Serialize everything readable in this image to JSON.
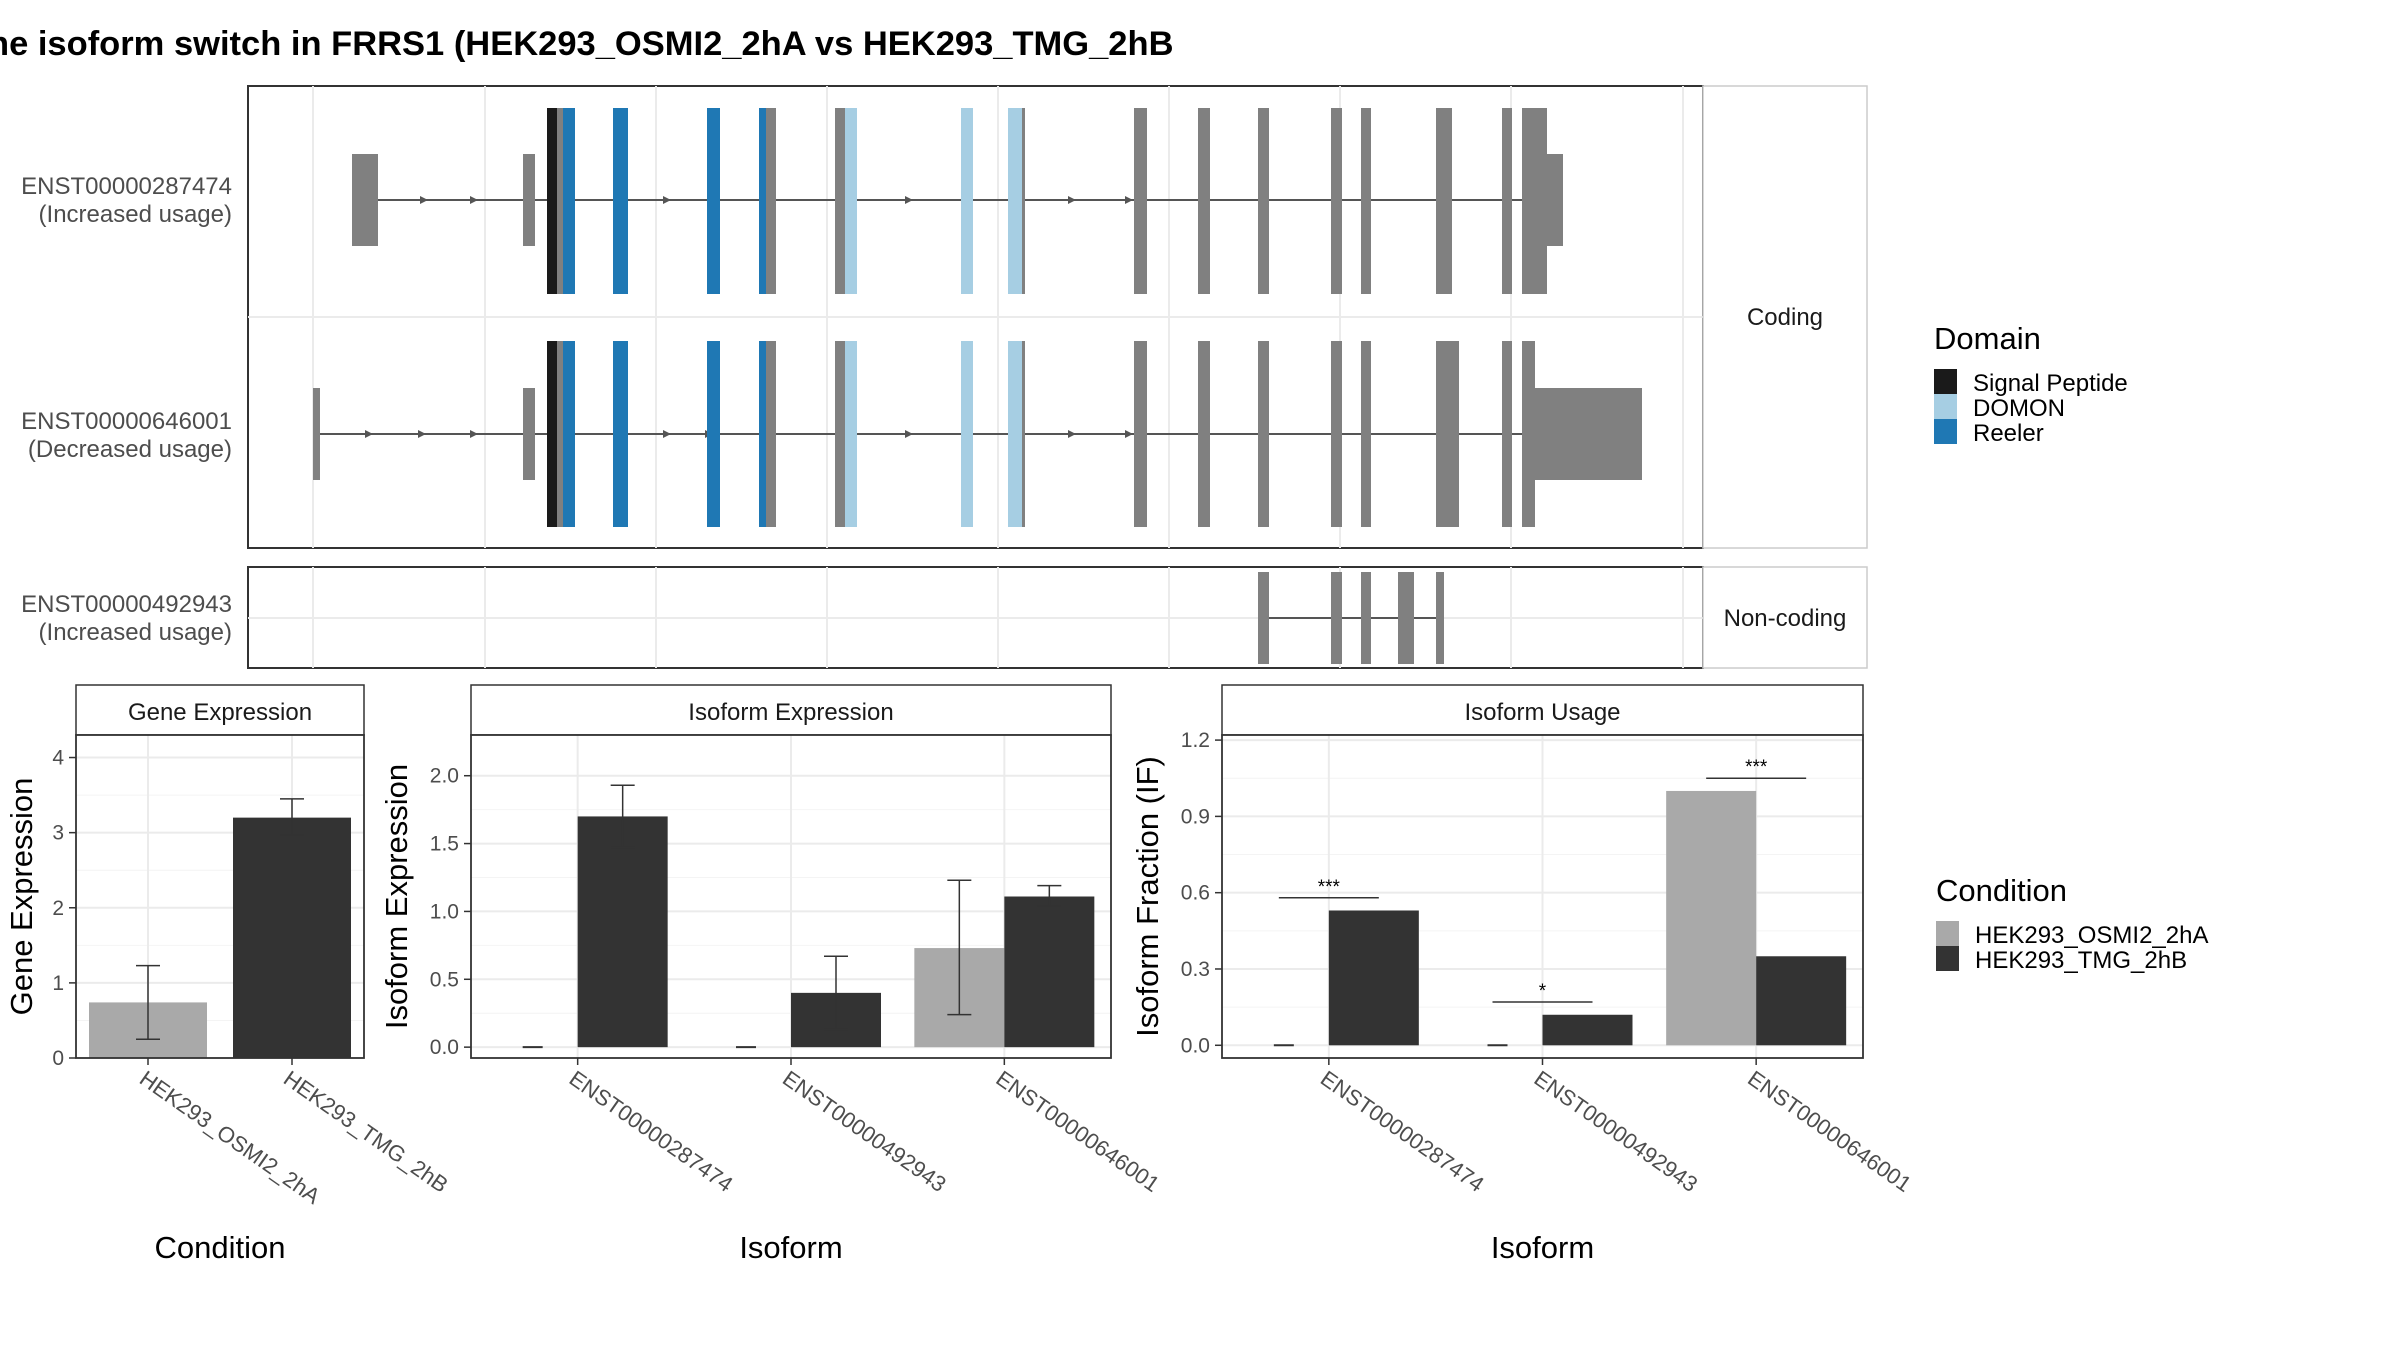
{
  "title": "he isoform switch in FRRS1 (HEK293_OSMI2_2hA vs HEK293_TMG_2hB",
  "colors": {
    "exon": "#808080",
    "intron": "#555555",
    "signal_peptide": "#1a1a1a",
    "domon": "#a6cee3",
    "reeler": "#1f78b4",
    "cond_a": "#a9a9a9",
    "cond_b": "#333333",
    "grid": "#ebebeb",
    "strip_fill": "#ffffff"
  },
  "isoforms": [
    {
      "id": "ENST00000287474",
      "usage": "(Increased usage)",
      "panel": "coding"
    },
    {
      "id": "ENST00000646001",
      "usage": "(Decreased usage)",
      "panel": "coding"
    },
    {
      "id": "ENST00000492943",
      "usage": "(Increased usage)",
      "panel": "noncoding"
    }
  ],
  "strips": {
    "coding": "Coding",
    "noncoding": "Non-coding"
  },
  "domain_legend": {
    "title": "Domain",
    "items": [
      {
        "label": "Signal Peptide",
        "color": "#1a1a1a"
      },
      {
        "label": "DOMON",
        "color": "#a6cee3"
      },
      {
        "label": "Reeler",
        "color": "#1f78b4"
      }
    ]
  },
  "condition_legend": {
    "title": "Condition",
    "items": [
      {
        "label": "HEK293_OSMI2_2hA",
        "color": "#a9a9a9"
      },
      {
        "label": "HEK293_TMG_2hB",
        "color": "#333333"
      }
    ]
  },
  "chart_data": [
    {
      "type": "bar",
      "title": "Gene Expression",
      "xlabel": "Condition",
      "ylabel": "Gene Expression",
      "ylim": [
        0,
        4.3
      ],
      "yticks": [
        "0",
        "1",
        "2",
        "3",
        "4"
      ],
      "categories": [
        "HEK293_OSMI2_2hA",
        "HEK293_TMG_2hB"
      ],
      "series": [
        {
          "name": "HEK293_OSMI2_2hA",
          "values": [
            0.74,
            null
          ],
          "err": [
            [
              0.25,
              1.23
            ],
            null
          ]
        },
        {
          "name": "HEK293_TMG_2hB",
          "values": [
            null,
            3.2
          ],
          "err": [
            null,
            [
              2.97,
              3.45
            ]
          ]
        }
      ]
    },
    {
      "type": "bar",
      "title": "Isoform Expression",
      "xlabel": "Isoform",
      "ylabel": "Isoform Expression",
      "ylim": [
        -0.08,
        2.3
      ],
      "yticks": [
        "0.0",
        "0.5",
        "1.0",
        "1.5",
        "2.0"
      ],
      "categories": [
        "ENST00000287474",
        "ENST00000492943",
        "ENST00000646001"
      ],
      "series": [
        {
          "name": "HEK293_OSMI2_2hA",
          "values": [
            0.0,
            0.0,
            0.73
          ],
          "err": [
            null,
            null,
            [
              0.24,
              1.23
            ]
          ]
        },
        {
          "name": "HEK293_TMG_2hB",
          "values": [
            1.7,
            0.4,
            1.11
          ],
          "err": [
            [
              1.47,
              1.93
            ],
            [
              0.13,
              0.67
            ],
            [
              1.04,
              1.19
            ]
          ]
        }
      ]
    },
    {
      "type": "bar",
      "title": "Isoform Usage",
      "xlabel": "Isoform",
      "ylabel": "Isoform Fraction (IF)",
      "ylim": [
        -0.05,
        1.22
      ],
      "yticks": [
        "0.0",
        "0.3",
        "0.6",
        "0.9",
        "1.2"
      ],
      "categories": [
        "ENST00000287474",
        "ENST00000492943",
        "ENST00000646001"
      ],
      "series": [
        {
          "name": "HEK293_OSMI2_2hA",
          "values": [
            0.0,
            0.0,
            1.0
          ]
        },
        {
          "name": "HEK293_TMG_2hB",
          "values": [
            0.53,
            0.12,
            0.35
          ]
        }
      ],
      "significance": [
        {
          "label": "***",
          "y": 0.58
        },
        {
          "label": "*",
          "y": 0.17
        },
        {
          "label": "***",
          "y": 1.05
        }
      ]
    }
  ]
}
